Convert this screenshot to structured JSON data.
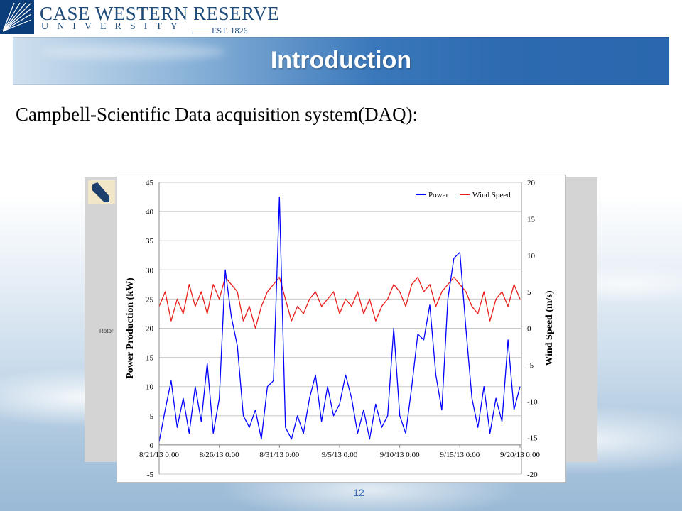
{
  "header": {
    "university_name": "CASE WESTERN RESERVE",
    "university_sub": "UNIVERSITY",
    "established": "EST. 1826"
  },
  "banner": {
    "title": "Introduction"
  },
  "subtitle": "Campbell-Scientific Data acquisition system(DAQ):",
  "background_label": "Rotor",
  "page_number": "12",
  "colors": {
    "power": "#0000ff",
    "wind": "#e8201c",
    "banner": "#2d6ab0",
    "page_number": "#3d73b3"
  },
  "chart_data": {
    "type": "line",
    "xlabel": "",
    "ylabel": "Power Production (kW)",
    "y2label": "Wind Speed (m/s)",
    "ylim": [
      -5,
      45
    ],
    "y2lim": [
      -20,
      20
    ],
    "xlim": [
      "2013-08-21",
      "2013-09-20"
    ],
    "yticks": [
      "45",
      "40",
      "35",
      "30",
      "25",
      "20",
      "15",
      "10",
      "5",
      "0",
      "-5"
    ],
    "y2ticks": [
      "20",
      "15",
      "10",
      "5",
      "0",
      "-5",
      "-10",
      "-15",
      "-20"
    ],
    "xticks": [
      "8/21/13 0:00",
      "8/26/13 0:00",
      "8/31/13 0:00",
      "9/5/13 0:00",
      "9/10/13 0:00",
      "9/15/13 0:00",
      "9/20/13 0:00"
    ],
    "legend": {
      "position": "top-right"
    },
    "grid": "horizontal",
    "series": [
      {
        "name": "Power",
        "axis": "left",
        "points": [
          [
            "2013-08-21",
            0.5
          ],
          [
            "2013-08-21T12:00",
            6
          ],
          [
            "2013-08-22",
            11
          ],
          [
            "2013-08-22T12:00",
            3
          ],
          [
            "2013-08-23",
            8
          ],
          [
            "2013-08-23T12:00",
            2
          ],
          [
            "2013-08-24",
            10
          ],
          [
            "2013-08-24T12:00",
            4
          ],
          [
            "2013-08-25",
            14
          ],
          [
            "2013-08-25T12:00",
            2
          ],
          [
            "2013-08-26",
            8
          ],
          [
            "2013-08-26T12:00",
            30
          ],
          [
            "2013-08-27",
            22
          ],
          [
            "2013-08-27T12:00",
            17
          ],
          [
            "2013-08-28",
            5
          ],
          [
            "2013-08-28T12:00",
            3
          ],
          [
            "2013-08-29",
            6
          ],
          [
            "2013-08-29T12:00",
            1
          ],
          [
            "2013-08-30",
            10
          ],
          [
            "2013-08-30T12:00",
            11
          ],
          [
            "2013-08-31",
            42.5
          ],
          [
            "2013-08-31T12:00",
            3
          ],
          [
            "2013-09-01",
            1
          ],
          [
            "2013-09-01T12:00",
            5
          ],
          [
            "2013-09-02",
            2
          ],
          [
            "2013-09-02T12:00",
            8
          ],
          [
            "2013-09-03",
            12
          ],
          [
            "2013-09-03T12:00",
            4
          ],
          [
            "2013-09-04",
            10
          ],
          [
            "2013-09-04T12:00",
            5
          ],
          [
            "2013-09-05",
            7
          ],
          [
            "2013-09-05T12:00",
            12
          ],
          [
            "2013-09-06",
            8
          ],
          [
            "2013-09-06T12:00",
            2
          ],
          [
            "2013-09-07",
            6
          ],
          [
            "2013-09-07T12:00",
            1
          ],
          [
            "2013-09-08",
            7
          ],
          [
            "2013-09-08T12:00",
            3
          ],
          [
            "2013-09-09",
            5
          ],
          [
            "2013-09-09T12:00",
            20
          ],
          [
            "2013-09-10",
            5
          ],
          [
            "2013-09-10T12:00",
            2
          ],
          [
            "2013-09-11",
            10
          ],
          [
            "2013-09-11T12:00",
            19
          ],
          [
            "2013-09-12",
            18
          ],
          [
            "2013-09-12T12:00",
            24
          ],
          [
            "2013-09-13",
            12
          ],
          [
            "2013-09-13T12:00",
            6
          ],
          [
            "2013-09-14",
            25
          ],
          [
            "2013-09-14T12:00",
            32
          ],
          [
            "2013-09-15",
            33
          ],
          [
            "2013-09-15T12:00",
            20
          ],
          [
            "2013-09-16",
            8
          ],
          [
            "2013-09-16T12:00",
            3
          ],
          [
            "2013-09-17",
            10
          ],
          [
            "2013-09-17T12:00",
            2
          ],
          [
            "2013-09-18",
            8
          ],
          [
            "2013-09-18T12:00",
            4
          ],
          [
            "2013-09-19",
            18
          ],
          [
            "2013-09-19T12:00",
            6
          ],
          [
            "2013-09-20",
            10
          ]
        ]
      },
      {
        "name": "Wind Speed",
        "axis": "right",
        "points": [
          [
            "2013-08-21",
            3
          ],
          [
            "2013-08-21T12:00",
            5
          ],
          [
            "2013-08-22",
            1
          ],
          [
            "2013-08-22T12:00",
            4
          ],
          [
            "2013-08-23",
            2
          ],
          [
            "2013-08-23T12:00",
            6
          ],
          [
            "2013-08-24",
            3
          ],
          [
            "2013-08-24T12:00",
            5
          ],
          [
            "2013-08-25",
            2
          ],
          [
            "2013-08-25T12:00",
            6
          ],
          [
            "2013-08-26",
            4
          ],
          [
            "2013-08-26T12:00",
            7
          ],
          [
            "2013-08-27",
            6
          ],
          [
            "2013-08-27T12:00",
            5
          ],
          [
            "2013-08-28",
            1
          ],
          [
            "2013-08-28T12:00",
            3
          ],
          [
            "2013-08-29",
            0
          ],
          [
            "2013-08-29T12:00",
            3
          ],
          [
            "2013-08-30",
            5
          ],
          [
            "2013-08-30T12:00",
            6
          ],
          [
            "2013-08-31",
            7
          ],
          [
            "2013-08-31T12:00",
            4
          ],
          [
            "2013-09-01",
            1
          ],
          [
            "2013-09-01T12:00",
            3
          ],
          [
            "2013-09-02",
            2
          ],
          [
            "2013-09-02T12:00",
            4
          ],
          [
            "2013-09-03",
            5
          ],
          [
            "2013-09-03T12:00",
            3
          ],
          [
            "2013-09-04",
            4
          ],
          [
            "2013-09-04T12:00",
            5
          ],
          [
            "2013-09-05",
            2
          ],
          [
            "2013-09-05T12:00",
            4
          ],
          [
            "2013-09-06",
            3
          ],
          [
            "2013-09-06T12:00",
            5
          ],
          [
            "2013-09-07",
            2
          ],
          [
            "2013-09-07T12:00",
            4
          ],
          [
            "2013-09-08",
            1
          ],
          [
            "2013-09-08T12:00",
            3
          ],
          [
            "2013-09-09",
            4
          ],
          [
            "2013-09-09T12:00",
            6
          ],
          [
            "2013-09-10",
            5
          ],
          [
            "2013-09-10T12:00",
            3
          ],
          [
            "2013-09-11",
            6
          ],
          [
            "2013-09-11T12:00",
            7
          ],
          [
            "2013-09-12",
            5
          ],
          [
            "2013-09-12T12:00",
            6
          ],
          [
            "2013-09-13",
            3
          ],
          [
            "2013-09-13T12:00",
            5
          ],
          [
            "2013-09-14",
            6
          ],
          [
            "2013-09-14T12:00",
            7
          ],
          [
            "2013-09-15",
            6
          ],
          [
            "2013-09-15T12:00",
            5
          ],
          [
            "2013-09-16",
            3
          ],
          [
            "2013-09-16T12:00",
            2
          ],
          [
            "2013-09-17",
            5
          ],
          [
            "2013-09-17T12:00",
            1
          ],
          [
            "2013-09-18",
            4
          ],
          [
            "2013-09-18T12:00",
            5
          ],
          [
            "2013-09-19",
            3
          ],
          [
            "2013-09-19T12:00",
            6
          ],
          [
            "2013-09-20",
            4
          ]
        ]
      }
    ]
  }
}
